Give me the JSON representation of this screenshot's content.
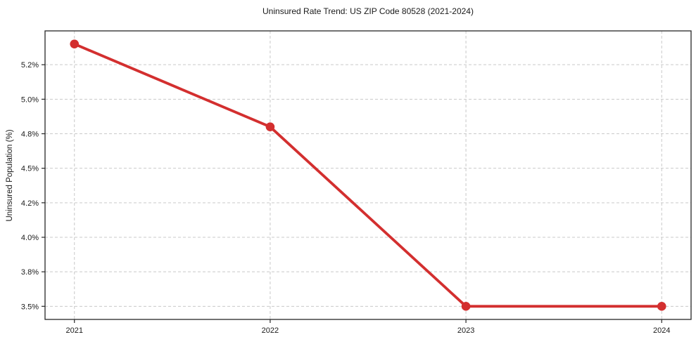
{
  "chart_data": {
    "type": "line",
    "title": "Uninsured Rate Trend: US ZIP Code 80528 (2021-2024)",
    "ylabel": "Uninsured Population (%)",
    "xlabel": "",
    "x": [
      2021,
      2022,
      2023,
      2024
    ],
    "values": [
      5.4,
      4.8,
      3.5,
      3.5
    ],
    "xlim": [
      2020.85,
      2024.15
    ],
    "ylim": [
      3.405,
      5.495
    ],
    "xticks": [
      {
        "value": 2021,
        "label": "2021"
      },
      {
        "value": 2022,
        "label": "2022"
      },
      {
        "value": 2023,
        "label": "2023"
      },
      {
        "value": 2024,
        "label": "2024"
      }
    ],
    "yticks": [
      {
        "value": 5.25,
        "label": "5.2%"
      },
      {
        "value": 5.0,
        "label": "5.0%"
      },
      {
        "value": 4.75,
        "label": "4.8%"
      },
      {
        "value": 4.5,
        "label": "4.5%"
      },
      {
        "value": 4.25,
        "label": "4.2%"
      },
      {
        "value": 4.0,
        "label": "4.0%"
      },
      {
        "value": 3.75,
        "label": "3.8%"
      },
      {
        "value": 3.5,
        "label": "3.5%"
      }
    ],
    "grid": true,
    "grid_style": "dashed",
    "marker": "circle",
    "legend": "none",
    "colors": {
      "line": "#d32f2f",
      "grid": "#c9c9c9",
      "axis": "#262626",
      "text": "#1a1a1a",
      "background": "#ffffff"
    }
  }
}
